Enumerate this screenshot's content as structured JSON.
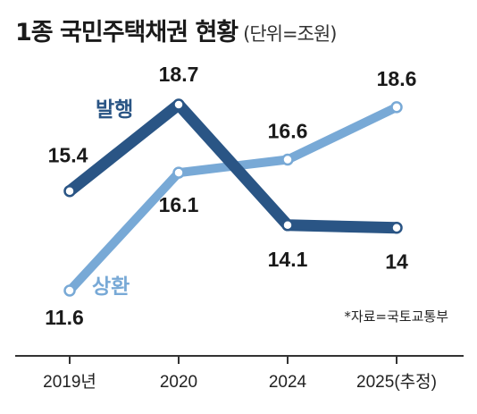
{
  "header": {
    "title": "1종 국민주택채권 현황",
    "unit": "(단위=조원)"
  },
  "source": "*자료=국토교통부",
  "colors": {
    "issuance": "#2a5585",
    "redemption": "#78a9d6",
    "axis": "#333333"
  },
  "chart_data": {
    "type": "line",
    "title": "1종 국민주택채권 현황",
    "unit": "조원",
    "categories": [
      "2019년",
      "2020",
      "2024",
      "2025(추정)"
    ],
    "series": [
      {
        "name": "발행",
        "values": [
          15.4,
          18.7,
          14.1,
          14.0
        ],
        "labels": [
          "15.4",
          "18.7",
          "14.1",
          "14"
        ]
      },
      {
        "name": "상환",
        "values": [
          11.6,
          16.1,
          16.6,
          18.6
        ],
        "labels": [
          "11.6",
          "16.1",
          "16.6",
          "18.6"
        ]
      }
    ],
    "grid": false,
    "legend": "inline"
  }
}
